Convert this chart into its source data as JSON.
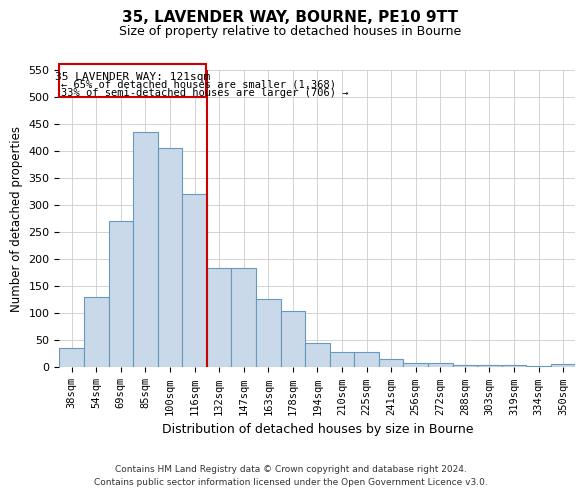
{
  "title": "35, LAVENDER WAY, BOURNE, PE10 9TT",
  "subtitle": "Size of property relative to detached houses in Bourne",
  "xlabel": "Distribution of detached houses by size in Bourne",
  "ylabel": "Number of detached properties",
  "bar_labels": [
    "38sqm",
    "54sqm",
    "69sqm",
    "85sqm",
    "100sqm",
    "116sqm",
    "132sqm",
    "147sqm",
    "163sqm",
    "178sqm",
    "194sqm",
    "210sqm",
    "225sqm",
    "241sqm",
    "256sqm",
    "272sqm",
    "288sqm",
    "303sqm",
    "319sqm",
    "334sqm",
    "350sqm"
  ],
  "bar_values": [
    35,
    130,
    270,
    435,
    405,
    320,
    183,
    183,
    125,
    103,
    45,
    28,
    28,
    15,
    8,
    8,
    3,
    3,
    3,
    2,
    6
  ],
  "bar_color": "#c9d9ea",
  "bar_edge_color": "#6699bb",
  "vline_x": 5.5,
  "vline_color": "#cc0000",
  "annotation_line1": "35 LAVENDER WAY: 121sqm",
  "annotation_line2": "← 65% of detached houses are smaller (1,368)",
  "annotation_line3": "33% of semi-detached houses are larger (706) →",
  "box_edge_color": "#cc0000",
  "ylim": [
    0,
    550
  ],
  "yticks": [
    0,
    50,
    100,
    150,
    200,
    250,
    300,
    350,
    400,
    450,
    500,
    550
  ],
  "footer_line1": "Contains HM Land Registry data © Crown copyright and database right 2024.",
  "footer_line2": "Contains public sector information licensed under the Open Government Licence v3.0."
}
